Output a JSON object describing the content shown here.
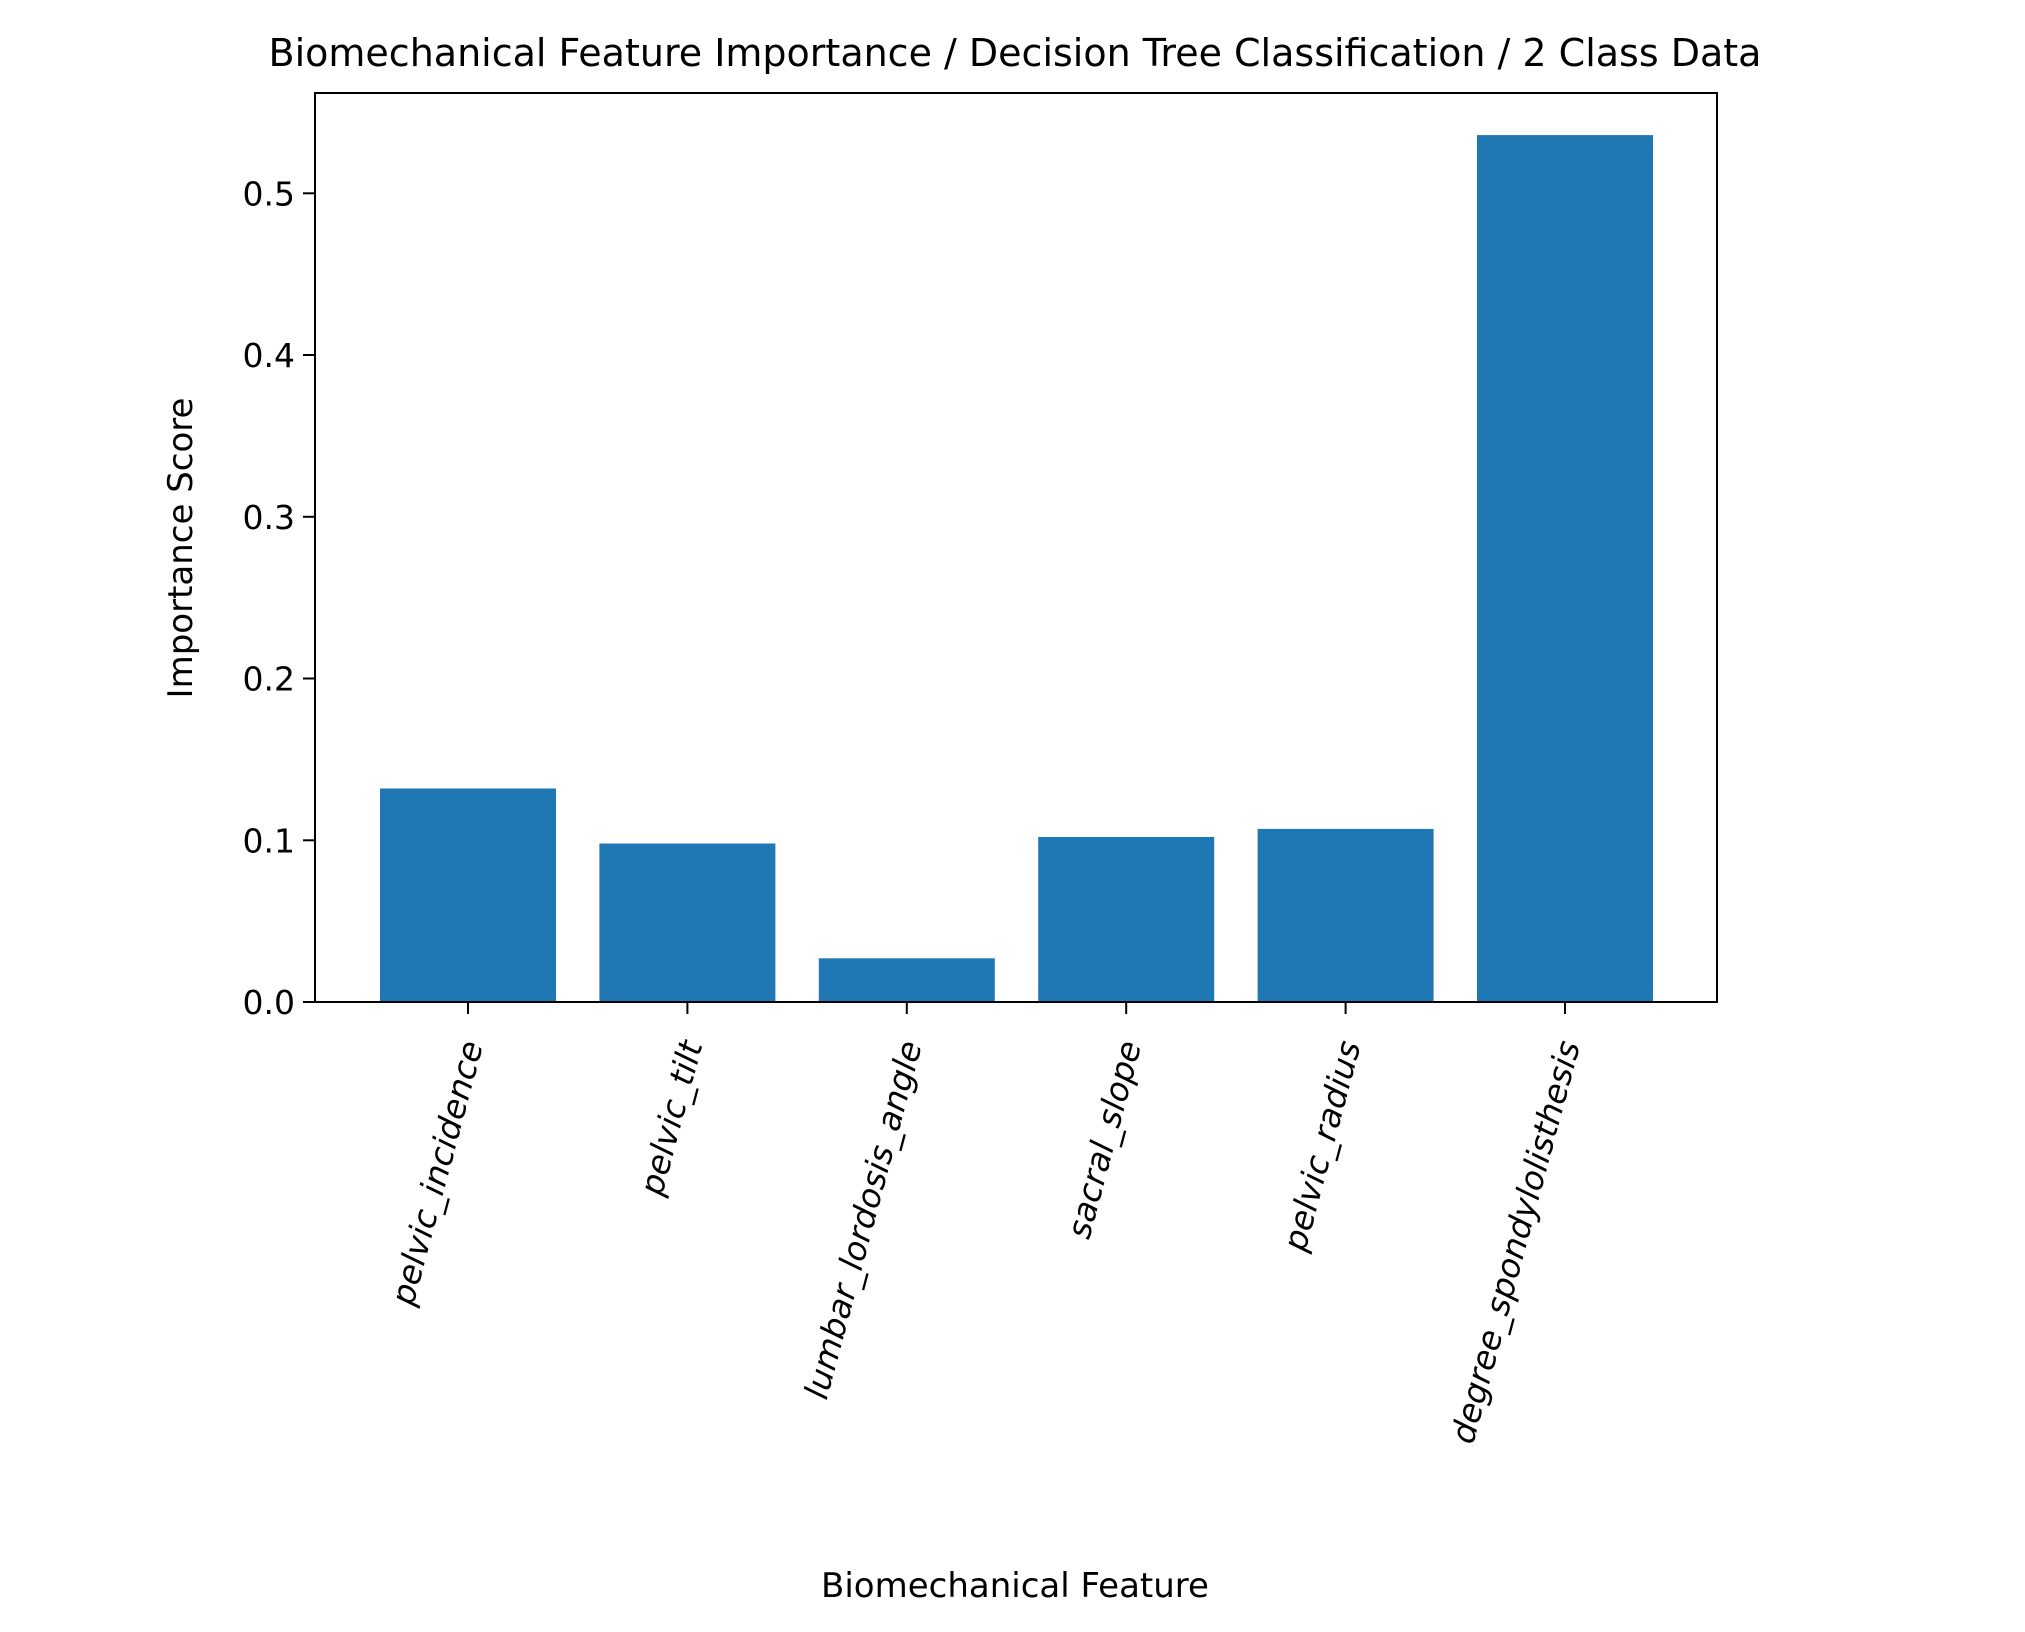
{
  "chart_data": {
    "type": "bar",
    "title": "Biomechanical Feature Importance / Decision Tree Classification / 2 Class Data",
    "xlabel": "Biomechanical Feature",
    "ylabel": "Importance Score",
    "categories": [
      "pelvic_incidence",
      "pelvic_tilt",
      "lumbar_lordosis_angle",
      "sacral_slope",
      "pelvic_radius",
      "degree_spondylolisthesis"
    ],
    "values": [
      0.132,
      0.098,
      0.027,
      0.102,
      0.107,
      0.536
    ],
    "ylim": [
      0,
      0.562
    ],
    "yticks": [
      0.0,
      0.1,
      0.2,
      0.3,
      0.4,
      0.5
    ],
    "ytick_labels": [
      "0.0",
      "0.1",
      "0.2",
      "0.3",
      "0.4",
      "0.5"
    ],
    "bar_color": "#1f77b4",
    "grid": false,
    "legend": "none"
  }
}
